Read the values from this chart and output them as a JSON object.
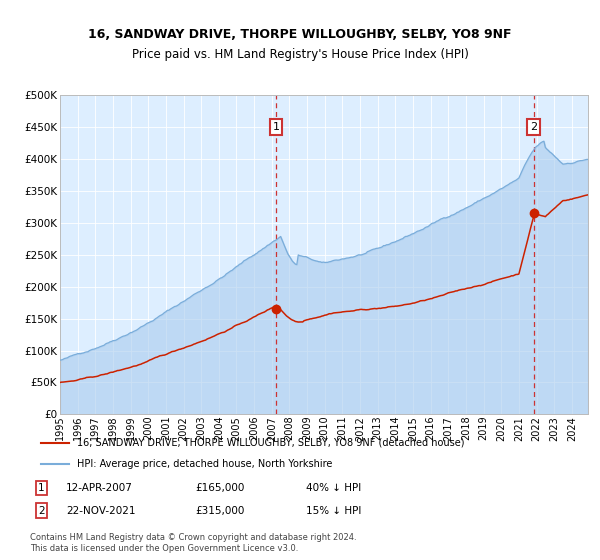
{
  "title": "16, SANDWAY DRIVE, THORPE WILLOUGHBY, SELBY, YO8 9NF",
  "subtitle": "Price paid vs. HM Land Registry's House Price Index (HPI)",
  "legend_line1": "16, SANDWAY DRIVE, THORPE WILLOUGHBY, SELBY, YO8 9NF (detached house)",
  "legend_line2": "HPI: Average price, detached house, North Yorkshire",
  "ann1_label": "1",
  "ann1_text": "12-APR-2007",
  "ann1_price": "£165,000",
  "ann1_rel": "40% ↓ HPI",
  "ann1_price_val": 165000,
  "ann1_year": 2007.29,
  "ann2_label": "2",
  "ann2_text": "22-NOV-2021",
  "ann2_price": "£315,000",
  "ann2_rel": "15% ↓ HPI",
  "ann2_price_val": 315000,
  "ann2_year": 2021.88,
  "footer": "Contains HM Land Registry data © Crown copyright and database right 2024.\nThis data is licensed under the Open Government Licence v3.0.",
  "bg_color": "#ddeeff",
  "hpi_color": "#7aadda",
  "hpi_fill_color": "#aaccee",
  "price_color": "#cc2200",
  "vline_color": "#cc3333",
  "ylim": [
    0,
    500000
  ],
  "ytick_vals": [
    0,
    50000,
    100000,
    150000,
    200000,
    250000,
    300000,
    350000,
    400000,
    450000,
    500000
  ],
  "ytick_labels": [
    "£0",
    "£50K",
    "£100K",
    "£150K",
    "£200K",
    "£250K",
    "£300K",
    "£350K",
    "£400K",
    "£450K",
    "£500K"
  ],
  "year_start": 1995,
  "year_end": 2025,
  "seed": 42
}
